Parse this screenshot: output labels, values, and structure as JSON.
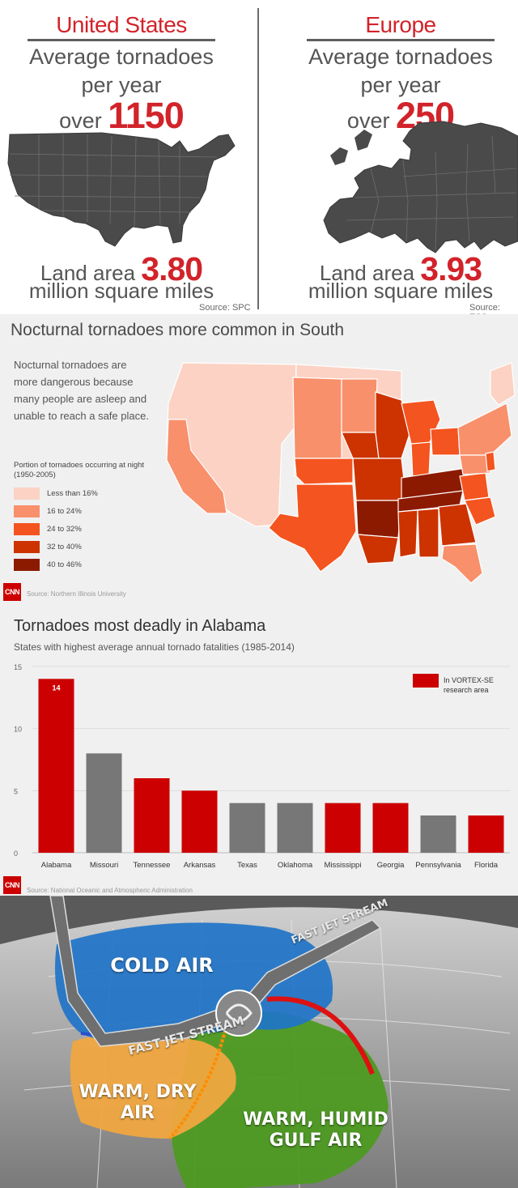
{
  "panel1": {
    "us": {
      "title": "United States",
      "line1": "Average tornadoes",
      "line2": "per year",
      "over_label": "over",
      "tornado_count": "1150",
      "land_label": "Land area",
      "land_value": "3.80",
      "land_unit": "million square miles",
      "source": "Source: SPC"
    },
    "europe": {
      "title": "Europe",
      "line1": "Average tornadoes",
      "line2": "per year",
      "over_label": "over",
      "tornado_count": "250",
      "land_label": "Land area",
      "land_value": "3.93",
      "land_unit": "million square miles",
      "source": "Source: ESS"
    }
  },
  "panel2": {
    "title": "Nocturnal tornadoes more common in South",
    "description": "Nocturnal tornadoes are more dangerous because many people are asleep and unable to reach a safe place.",
    "legend_title": "Portion of tornadoes occurring at night (1950-2005)",
    "legend": [
      {
        "label": "Less than 16%",
        "color": "#fcd2c4"
      },
      {
        "label": "16 to 24%",
        "color": "#f8906b"
      },
      {
        "label": "24 to 32%",
        "color": "#f4541f"
      },
      {
        "label": "32 to 40%",
        "color": "#cc3300"
      },
      {
        "label": "40 to 46%",
        "color": "#8c1a00"
      }
    ],
    "logo": "CNN",
    "source": "Source: Northern Illinois University"
  },
  "chart_data": {
    "type": "bar",
    "title": "Tornadoes most deadly in Alabama",
    "subtitle": "States with highest average annual tornado fatalities (1985-2014)",
    "categories": [
      "Alabama",
      "Missouri",
      "Tennessee",
      "Arkansas",
      "Texas",
      "Oklahoma",
      "Mississippi",
      "Georgia",
      "Pennsylvania",
      "Florida"
    ],
    "values": [
      14,
      8,
      6,
      5,
      4,
      4,
      4,
      4,
      3,
      3
    ],
    "in_vortex_se": [
      true,
      false,
      true,
      true,
      false,
      false,
      true,
      true,
      false,
      true
    ],
    "data_labels": [
      "14",
      "",
      "",
      "",
      "",
      "",
      "",
      "",
      "",
      ""
    ],
    "colors": {
      "highlight": "#cc0000",
      "other": "#777777"
    },
    "ylim": [
      0,
      15
    ],
    "yticks": [
      "0",
      "5",
      "10",
      "15"
    ],
    "grid": true,
    "legend": {
      "label": "In VORTEX-SE research area",
      "placement": "top-right"
    },
    "logo": "CNN",
    "source": "Source: National Oceanic and Atmospheric Administration"
  },
  "panel4": {
    "cold_air": "COLD AIR",
    "warm_dry_line1": "WARM, DRY",
    "warm_dry_line2": "AIR",
    "warm_humid_line1": "WARM, HUMID",
    "warm_humid_line2": "GULF AIR",
    "jet_stream": "FAST JET STREAM",
    "colors": {
      "cold": "#1f74c8",
      "dry": "#f0a640",
      "humid": "#4d9a22"
    }
  }
}
